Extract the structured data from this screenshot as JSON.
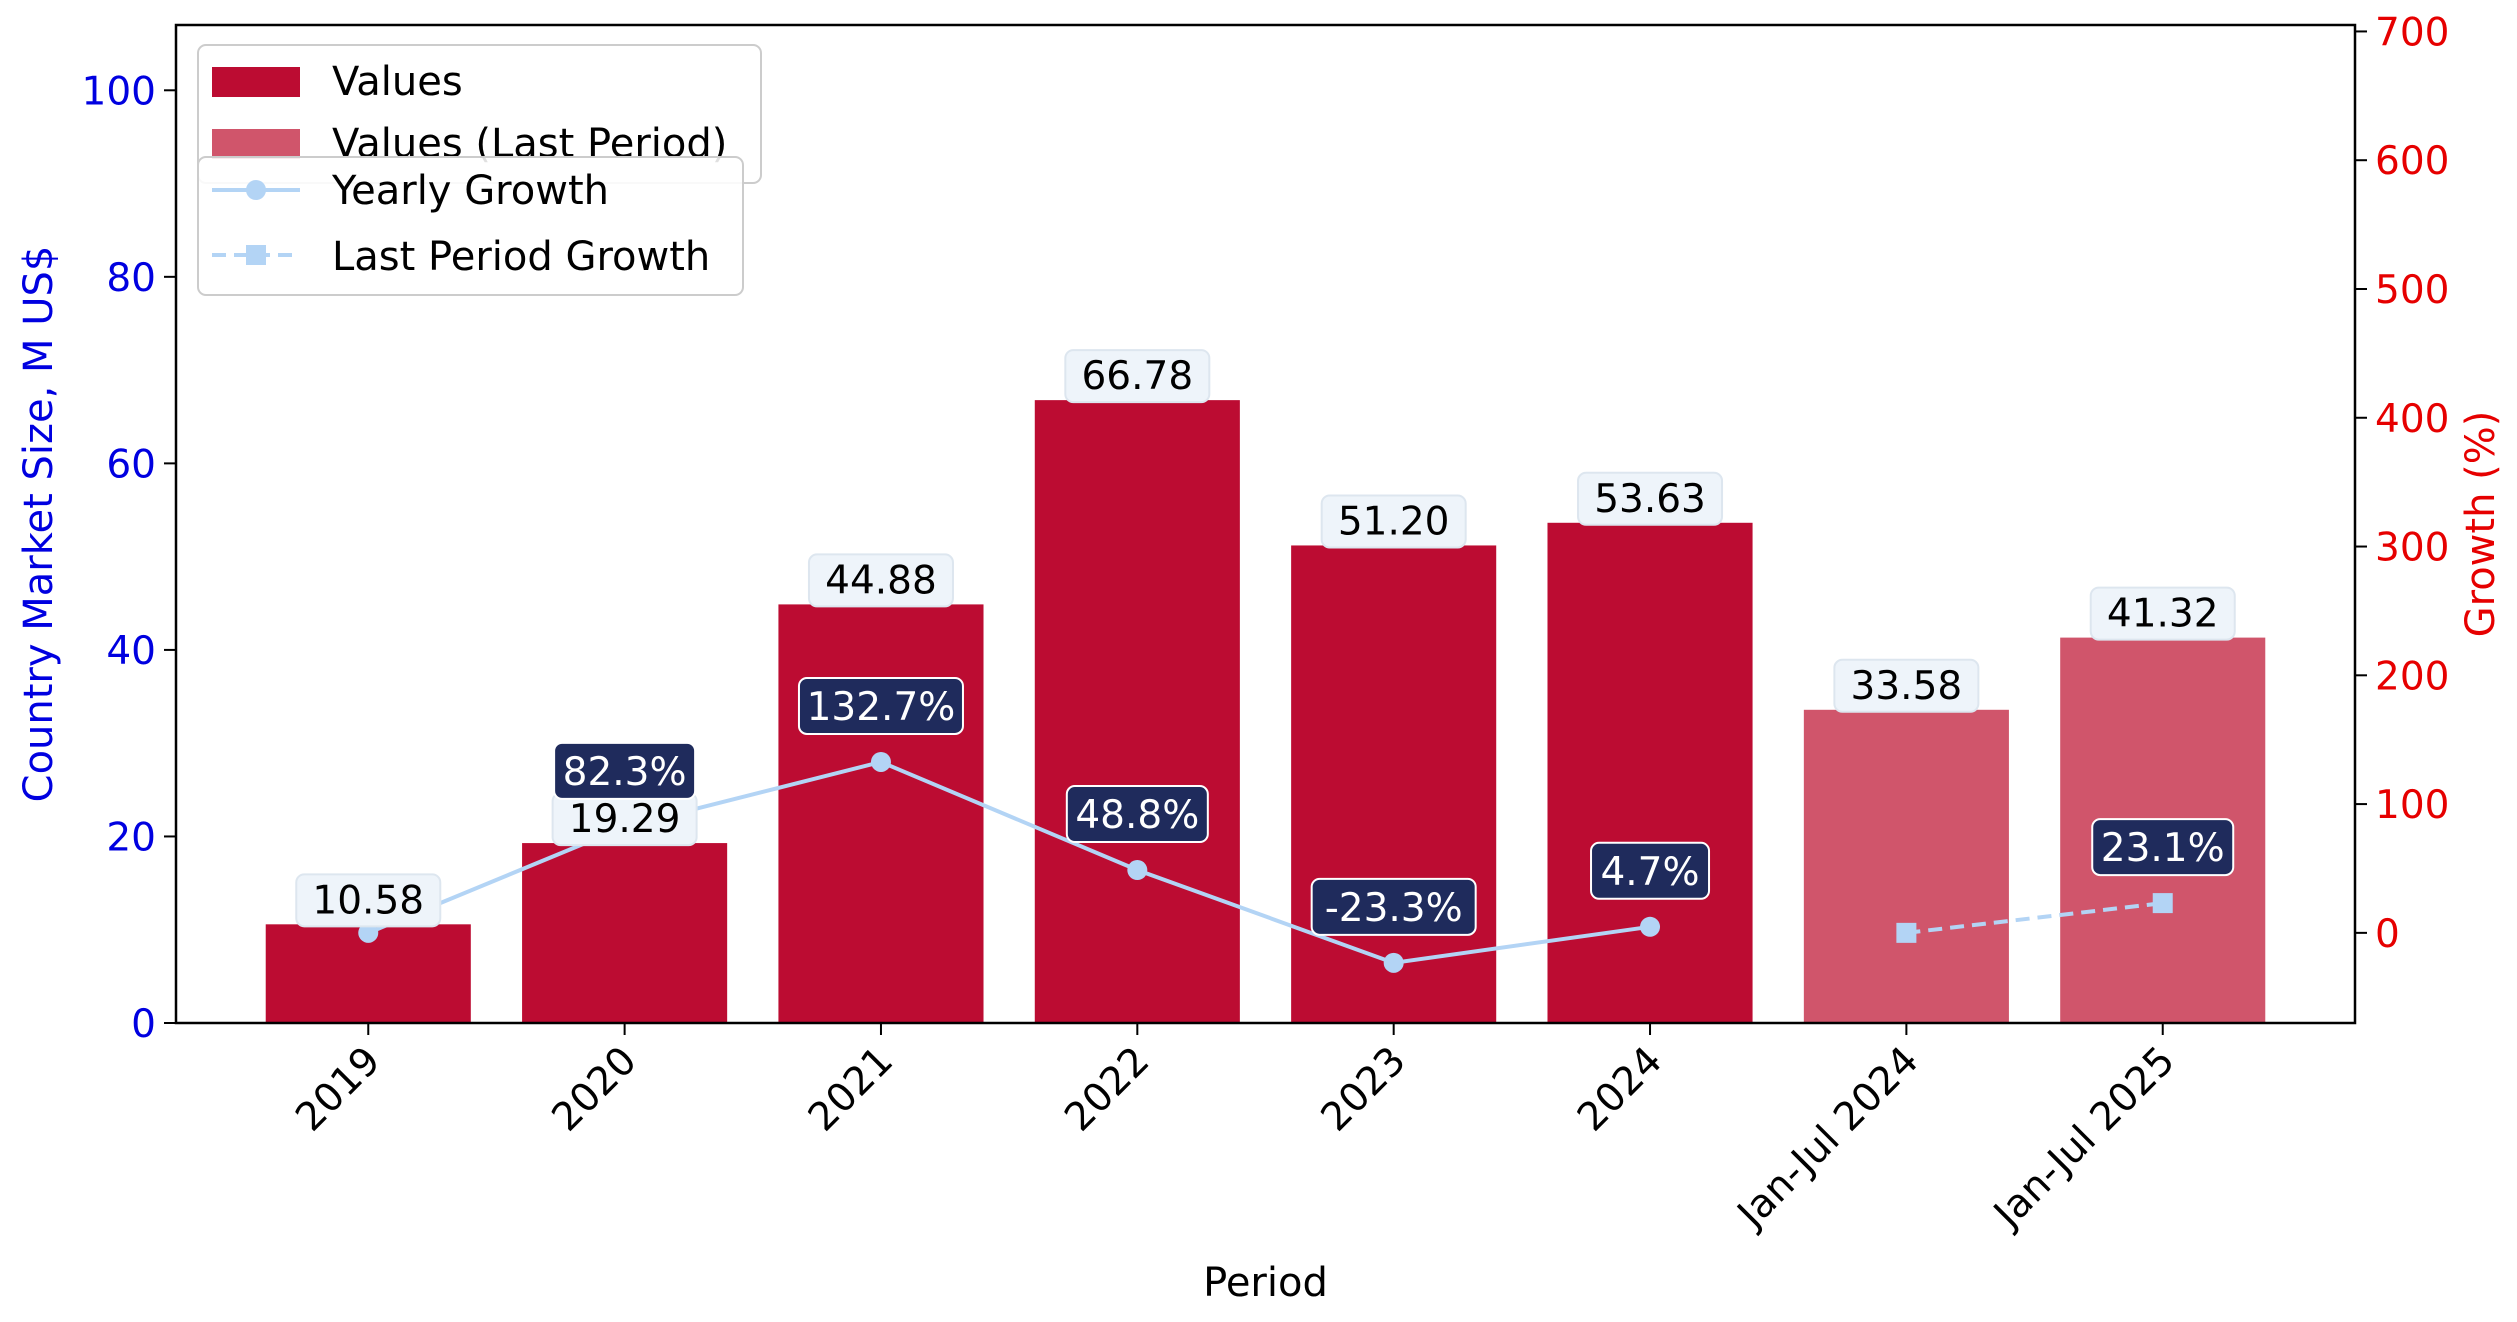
{
  "chart_data": {
    "type": "bar",
    "categories": [
      "2019",
      "2020",
      "2021",
      "2022",
      "2023",
      "2024",
      "Jan-Jul 2024",
      "Jan-Jul 2025"
    ],
    "series": [
      {
        "name": "Values",
        "values": [
          10.58,
          19.29,
          44.88,
          66.78,
          51.2,
          53.63,
          null,
          null
        ],
        "color": "#bc0c32"
      },
      {
        "name": "Values (Last Period)",
        "values": [
          null,
          null,
          null,
          null,
          null,
          null,
          33.58,
          41.32
        ],
        "color": "#d0556b"
      },
      {
        "name": "Yearly Growth",
        "type": "line",
        "axis": "right",
        "values": [
          0,
          82.3,
          132.7,
          48.8,
          -23.3,
          4.7,
          null,
          null
        ],
        "color": "#b3d4f5"
      },
      {
        "name": "Last Period Growth",
        "type": "line",
        "axis": "right",
        "style": "dashed",
        "values": [
          null,
          null,
          null,
          null,
          null,
          null,
          0,
          23.1
        ],
        "color": "#b3d4f5"
      }
    ],
    "value_labels": [
      "10.58",
      "19.29",
      "44.88",
      "66.78",
      "51.20",
      "53.63",
      "33.58",
      "41.32"
    ],
    "growth_labels": [
      "",
      "82.3%",
      "132.7%",
      "48.8%",
      "-23.3%",
      "4.7%",
      "",
      "23.1%"
    ],
    "xlabel": "Period",
    "ylabel": "Country Market Size, M US$",
    "y2label": "Growth (%)",
    "ylim": [
      0,
      107
    ],
    "y2lim": [
      -70,
      705
    ],
    "yticks": [
      0,
      20,
      40,
      60,
      80,
      100
    ],
    "y2ticks": [
      0,
      100,
      200,
      300,
      400,
      500,
      600,
      700
    ],
    "grid": false,
    "legend_placement": "top-left",
    "left_axis_color": "#0000e0",
    "right_axis_color": "#e60000",
    "growth_label_bg": "#1f2b5c",
    "value_label_bg": "#eef4fa"
  }
}
